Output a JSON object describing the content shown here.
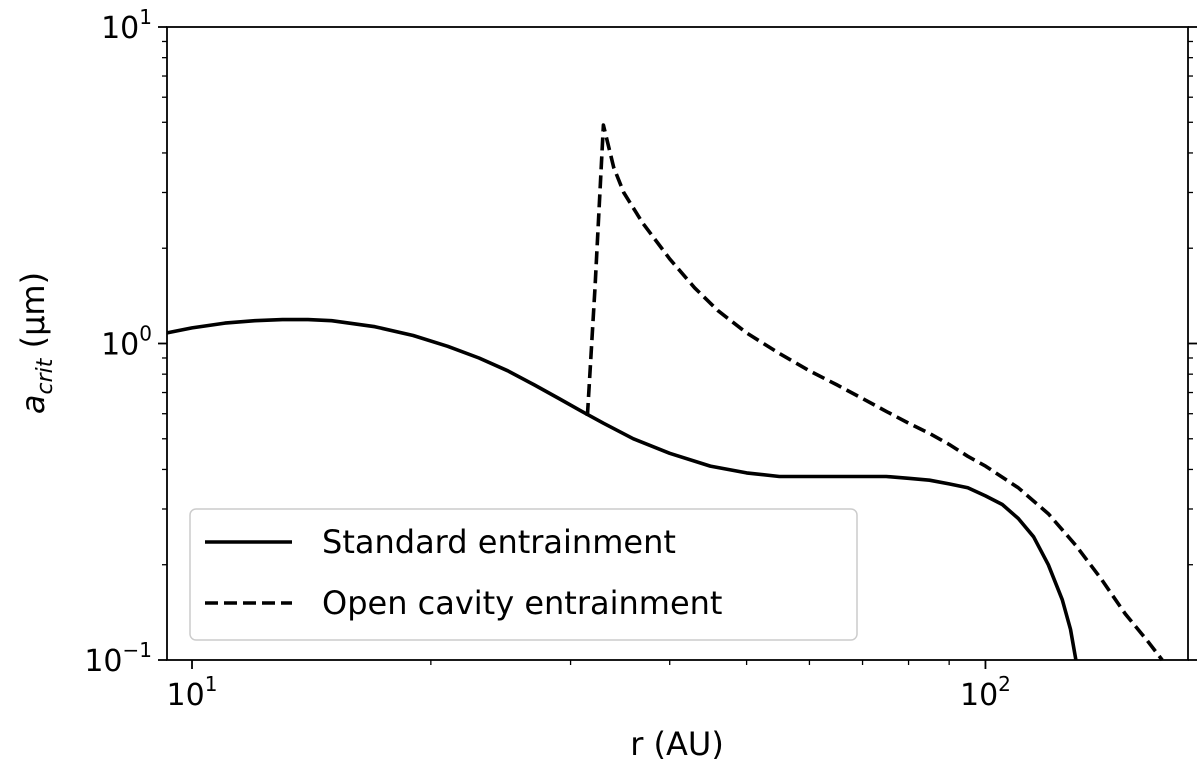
{
  "chart_data": {
    "type": "line",
    "xlabel": "r (AU)",
    "ylabel_base": "a",
    "ylabel_sub": "crit",
    "ylabel_rest": " (μm)",
    "xscale": "log",
    "yscale": "log",
    "xlim": [
      9.3,
      180
    ],
    "ylim": [
      0.1,
      10
    ],
    "grid": false,
    "legend_placement": "lower-left",
    "x_major_ticks": [
      {
        "value": 10,
        "base": "10",
        "exp": "1"
      },
      {
        "value": 100,
        "base": "10",
        "exp": "2"
      }
    ],
    "y_major_ticks": [
      {
        "value": 0.1,
        "base": "10",
        "exp": "−1"
      },
      {
        "value": 1,
        "base": "10",
        "exp": "0"
      },
      {
        "value": 10,
        "base": "10",
        "exp": "1"
      }
    ],
    "series": [
      {
        "name": "Standard entrainment",
        "style": "solid",
        "points": [
          [
            9.3,
            1.08
          ],
          [
            10,
            1.12
          ],
          [
            11,
            1.16
          ],
          [
            12,
            1.18
          ],
          [
            13,
            1.19
          ],
          [
            14,
            1.19
          ],
          [
            15,
            1.18
          ],
          [
            17,
            1.13
          ],
          [
            19,
            1.06
          ],
          [
            21,
            0.98
          ],
          [
            23,
            0.9
          ],
          [
            25,
            0.82
          ],
          [
            27,
            0.74
          ],
          [
            29,
            0.67
          ],
          [
            31,
            0.61
          ],
          [
            33,
            0.56
          ],
          [
            36,
            0.5
          ],
          [
            40,
            0.45
          ],
          [
            45,
            0.41
          ],
          [
            50,
            0.39
          ],
          [
            55,
            0.38
          ],
          [
            60,
            0.38
          ],
          [
            65,
            0.38
          ],
          [
            70,
            0.38
          ],
          [
            75,
            0.38
          ],
          [
            80,
            0.375
          ],
          [
            85,
            0.37
          ],
          [
            90,
            0.36
          ],
          [
            95,
            0.35
          ],
          [
            100,
            0.33
          ],
          [
            105,
            0.31
          ],
          [
            110,
            0.28
          ],
          [
            115,
            0.245
          ],
          [
            120,
            0.2
          ],
          [
            125,
            0.155
          ],
          [
            128,
            0.125
          ],
          [
            130,
            0.1
          ]
        ]
      },
      {
        "name": "Open cavity entrainment",
        "style": "dashed",
        "points": [
          [
            31.5,
            0.59
          ],
          [
            32.2,
            1.5
          ],
          [
            33,
            4.9
          ],
          [
            34,
            3.6
          ],
          [
            35,
            3.0
          ],
          [
            37,
            2.4
          ],
          [
            40,
            1.85
          ],
          [
            43,
            1.5
          ],
          [
            46,
            1.27
          ],
          [
            50,
            1.08
          ],
          [
            55,
            0.93
          ],
          [
            60,
            0.82
          ],
          [
            65,
            0.74
          ],
          [
            70,
            0.67
          ],
          [
            75,
            0.61
          ],
          [
            80,
            0.56
          ],
          [
            85,
            0.52
          ],
          [
            90,
            0.48
          ],
          [
            95,
            0.44
          ],
          [
            100,
            0.41
          ],
          [
            110,
            0.35
          ],
          [
            120,
            0.29
          ],
          [
            130,
            0.23
          ],
          [
            140,
            0.18
          ],
          [
            150,
            0.14
          ],
          [
            160,
            0.115
          ],
          [
            167,
            0.1
          ]
        ]
      }
    ]
  }
}
